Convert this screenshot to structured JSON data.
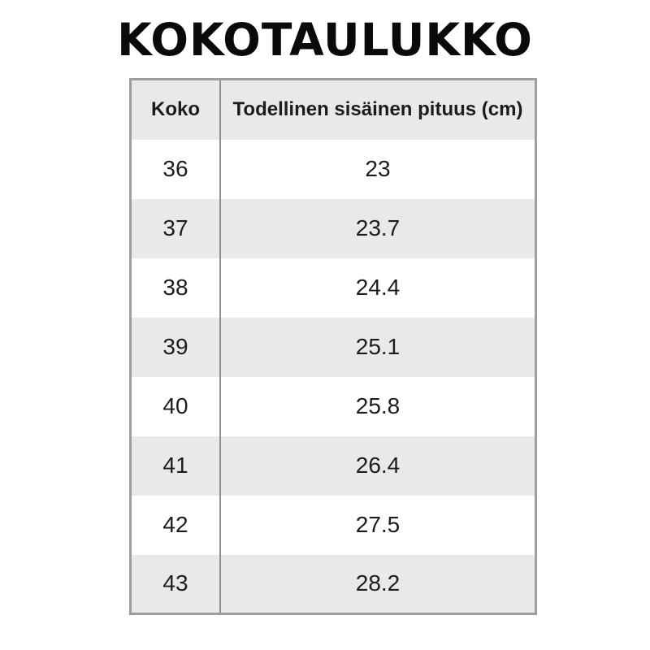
{
  "title": "KOKOTAULUKKO",
  "table": {
    "headers": [
      "Koko",
      "Todellinen sisäinen pituus (cm)"
    ],
    "rows": [
      [
        "36",
        "23"
      ],
      [
        "37",
        "23.7"
      ],
      [
        "38",
        "24.4"
      ],
      [
        "39",
        "25.1"
      ],
      [
        "40",
        "25.8"
      ],
      [
        "41",
        "26.4"
      ],
      [
        "42",
        "27.5"
      ],
      [
        "43",
        "28.2"
      ]
    ]
  },
  "colors": {
    "stripe": "#e9e9e9",
    "outer_border": "#9e9e9e",
    "column_divider": "#8f8f8f",
    "text": "#1c1c1c",
    "title_text": "#0a0a0a",
    "background": "#ffffff"
  },
  "chart_data": {
    "type": "table",
    "title": "KOKOTAULUKKO",
    "columns": [
      "Koko",
      "Todellinen sisäinen pituus (cm)"
    ],
    "rows": [
      [
        36,
        23
      ],
      [
        37,
        23.7
      ],
      [
        38,
        24.4
      ],
      [
        39,
        25.1
      ],
      [
        40,
        25.8
      ],
      [
        41,
        26.4
      ],
      [
        42,
        27.5
      ],
      [
        43,
        28.2
      ]
    ],
    "layout": "shoe size chart; header row shaded gray; data rows alternate white/gray stripes; single vertical divider between columns; gray outer border; bold centered title above"
  }
}
